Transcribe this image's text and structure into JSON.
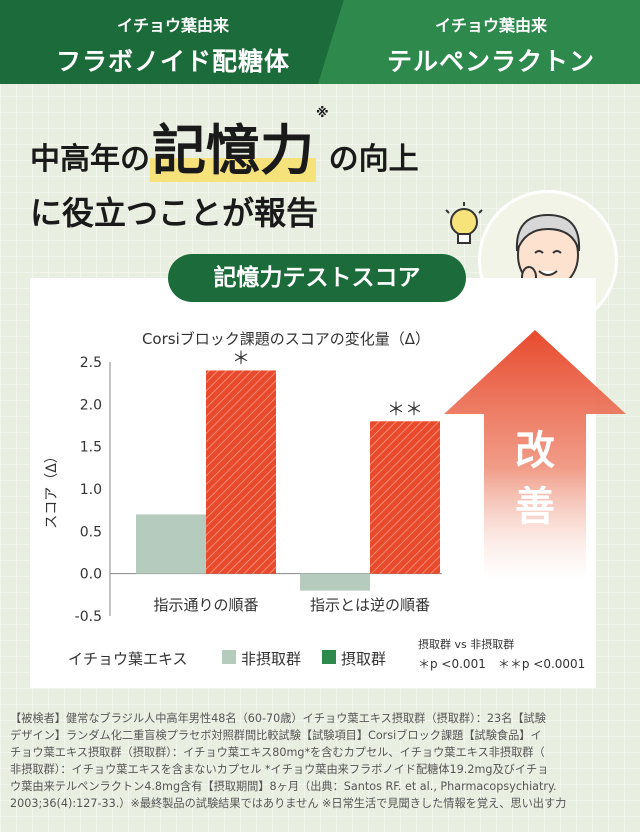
{
  "header": {
    "left_sub": "イチョウ葉由来",
    "left_main": "フラボノイド配糖体",
    "right_sub": "イチョウ葉由来",
    "right_main": "テルペンラクトン"
  },
  "headline": {
    "part1": "中高年の",
    "part2": "記憶力",
    "mark": "※",
    "part3": "の向上",
    "line2": "に役立つことが報告"
  },
  "badge_label": "記憶力テストスコア",
  "arrow_text": [
    "改",
    "善"
  ],
  "colors": {
    "dark_green": "#1c6b3a",
    "green": "#2e8a4c",
    "bar_gray": "#b5cbbe",
    "bar_red": "#ea4a2c",
    "arrow": "#e84a2e"
  },
  "chart_data": {
    "type": "bar",
    "title": "Corsiブロック課題のスコアの変化量（Δ）",
    "ylabel": "スコア（Δ）",
    "xlabel": "",
    "categories": [
      "指示通りの順番",
      "指示とは逆の順番"
    ],
    "series": [
      {
        "name": "非摂取群",
        "values": [
          0.7,
          -0.2
        ]
      },
      {
        "name": "摂取群",
        "values": [
          2.4,
          1.8
        ]
      }
    ],
    "ylim": [
      -0.5,
      2.5
    ],
    "yticks": [
      "2.5",
      "2.0",
      "1.5",
      "1.0",
      "0.5",
      "0.0",
      "-0.5"
    ],
    "annotations": [
      "＊",
      "＊＊"
    ],
    "legend_title": "イチョウ葉エキス",
    "sig_title": "摂取群 vs 非摂取群",
    "sig_notes": "＊p <0.001　＊＊p <0.0001",
    "grid": false,
    "legend_position": "bottom"
  },
  "footer_lines": [
    "【被検者】健常なブラジル人中高年男性48名（60-70歳）イチョウ葉エキス摂取群（摂取群）：23名【試験",
    "デザイン】ランダム化二重盲検プラセボ対照群間比較試験【試験項目】Corsiブロック課題【試験食品】イ",
    "チョウ葉エキス摂取群（摂取群）：イチョウ葉エキス80mg*を含むカプセル、イチョウ葉エキス非摂取群（",
    "非摂取群）：イチョウ葉エキスを含まないカプセル *イチョウ葉由来フラボノイド配糖体19.2mg及びイチョ",
    "ウ葉由来テルペンラクトン4.8mg含有【摂取期間】8ヶ月（出典：Santos RF. et al., Pharmacopsychiatry.",
    "2003;36(4):127-33.）※最終製品の試験結果ではありません ※日常生活で見聞きした情報を覚え、思い出す力"
  ]
}
